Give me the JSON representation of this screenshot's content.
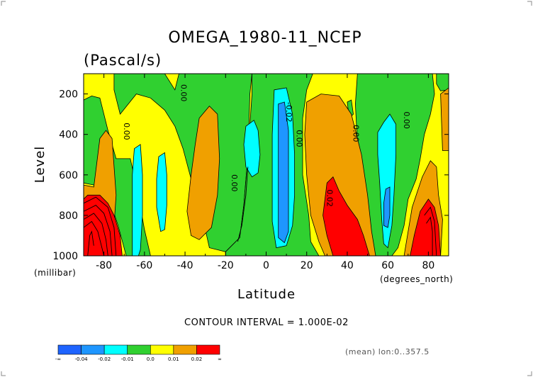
{
  "chart_data": {
    "type": "heatmap",
    "title": "OMEGA_1980-11_NCEP",
    "units": "(Pascal/s)",
    "xlabel": "Latitude",
    "x_units": "(degrees_north)",
    "ylabel": "Level",
    "y_units": "(millibar)",
    "xlim": [
      -90,
      90
    ],
    "ylim": [
      1000,
      100
    ],
    "x_ticks": [
      -80,
      -60,
      -40,
      -20,
      0,
      20,
      40,
      60,
      80
    ],
    "y_ticks": [
      200,
      400,
      600,
      800,
      1000
    ],
    "contour_interval_text": "CONTOUR INTERVAL = 1.000E-02",
    "footnote": "(mean) lon:0..357.5",
    "contour_labels": [
      {
        "text": "0.00",
        "lat": -70,
        "lev": 385
      },
      {
        "text": "0.00",
        "lat": -42,
        "lev": 195
      },
      {
        "text": "0.00",
        "lat": -17,
        "lev": 640
      },
      {
        "text": "-0.02",
        "lat": 10,
        "lev": 290
      },
      {
        "text": "0.00",
        "lat": 15,
        "lev": 420
      },
      {
        "text": "0.02",
        "lat": 30,
        "lev": 715
      },
      {
        "text": "0.00",
        "lat": 43,
        "lev": 395
      },
      {
        "text": "0.00",
        "lat": 68,
        "lev": 330
      }
    ],
    "colorbar": {
      "bins": [
        {
          "label": "-∞",
          "color": "#1e64ff"
        },
        {
          "label": "-0.04",
          "color": "#1e96ff"
        },
        {
          "label": "-0.02",
          "color": "#00ffff"
        },
        {
          "label": "-0.01",
          "color": "#30d030"
        },
        {
          "label": "0.0",
          "color": "#ffff00"
        },
        {
          "label": "0.01",
          "color": "#f0a000"
        },
        {
          "label": "0.02",
          "color": "#ff0000"
        }
      ],
      "end_label": "∞"
    },
    "regions": [
      {
        "value": "yellow",
        "color": "#ffff00",
        "points": [
          [
            -90,
            1000
          ],
          [
            -90,
            100
          ],
          [
            90,
            100
          ],
          [
            90,
            1000
          ]
        ]
      },
      {
        "value": "green",
        "color": "#30d030",
        "points": [
          [
            -75,
            100
          ],
          [
            -50,
            100
          ],
          [
            -45,
            180
          ],
          [
            -43,
            100
          ],
          [
            -7,
            100
          ],
          [
            -8,
            200
          ],
          [
            -9,
            500
          ],
          [
            -11,
            750
          ],
          [
            -13,
            910
          ],
          [
            -20,
            980
          ],
          [
            -28,
            960
          ],
          [
            -32,
            780
          ],
          [
            -37,
            620
          ],
          [
            -41,
            470
          ],
          [
            -45,
            360
          ],
          [
            -50,
            280
          ],
          [
            -57,
            220
          ],
          [
            -64,
            200
          ],
          [
            -72,
            300
          ],
          [
            -75,
            180
          ]
        ]
      },
      {
        "value": "green",
        "color": "#30d030",
        "points": [
          [
            -86,
            210
          ],
          [
            -82,
            220
          ],
          [
            -78,
            380
          ],
          [
            -74,
            520
          ],
          [
            -67,
            520
          ],
          [
            -63,
            700
          ],
          [
            -60,
            870
          ],
          [
            -57,
            1000
          ],
          [
            -69,
            1000
          ],
          [
            -73,
            850
          ],
          [
            -77,
            730
          ],
          [
            -85,
            650
          ],
          [
            -90,
            640
          ],
          [
            -90,
            230
          ]
        ]
      },
      {
        "value": "green",
        "color": "#30d030",
        "points": [
          [
            -20,
            980
          ],
          [
            -13,
            910
          ],
          [
            -11,
            750
          ],
          [
            -9,
            500
          ],
          [
            -7,
            200
          ],
          [
            -7,
            100
          ],
          [
            23,
            100
          ],
          [
            20,
            180
          ],
          [
            18,
            320
          ],
          [
            18,
            600
          ],
          [
            21,
            800
          ],
          [
            22,
            930
          ],
          [
            26,
            1000
          ],
          [
            -20,
            1000
          ]
        ]
      },
      {
        "value": "green",
        "color": "#30d030",
        "points": [
          [
            45,
            100
          ],
          [
            82,
            100
          ],
          [
            83,
            200
          ],
          [
            81,
            300
          ],
          [
            78,
            400
          ],
          [
            76,
            520
          ],
          [
            74,
            620
          ],
          [
            70,
            720
          ],
          [
            68,
            850
          ],
          [
            65,
            960
          ],
          [
            62,
            1000
          ],
          [
            54,
            1000
          ],
          [
            50,
            850
          ],
          [
            47,
            650
          ],
          [
            45,
            450
          ],
          [
            44,
            250
          ]
        ]
      },
      {
        "value": "green",
        "color": "#30d030",
        "points": [
          [
            84,
            100
          ],
          [
            90,
            100
          ],
          [
            90,
            180
          ],
          [
            86,
            185
          ],
          [
            84,
            150
          ]
        ]
      },
      {
        "value": "green",
        "color": "#30d030",
        "points": [
          [
            40,
            240
          ],
          [
            42,
            230
          ],
          [
            43,
            300
          ],
          [
            41,
            320
          ]
        ]
      },
      {
        "value": "orange",
        "color": "#f0a000",
        "points": [
          [
            -90,
            650
          ],
          [
            -85,
            660
          ],
          [
            -82,
            420
          ],
          [
            -79,
            380
          ],
          [
            -76,
            420
          ],
          [
            -74,
            700
          ],
          [
            -76,
            1000
          ],
          [
            -90,
            1000
          ]
        ]
      },
      {
        "value": "orange",
        "color": "#f0a000",
        "points": [
          [
            -33,
            320
          ],
          [
            -28,
            260
          ],
          [
            -24,
            300
          ],
          [
            -23,
            520
          ],
          [
            -24,
            700
          ],
          [
            -27,
            860
          ],
          [
            -33,
            920
          ],
          [
            -37,
            900
          ],
          [
            -39,
            780
          ],
          [
            -37,
            600
          ],
          [
            -35,
            450
          ]
        ]
      },
      {
        "value": "orange",
        "color": "#f0a000",
        "points": [
          [
            20,
            240
          ],
          [
            27,
            200
          ],
          [
            36,
            210
          ],
          [
            42,
            300
          ],
          [
            47,
            500
          ],
          [
            50,
            700
          ],
          [
            52,
            880
          ],
          [
            54,
            1000
          ],
          [
            29,
            1000
          ],
          [
            26,
            930
          ],
          [
            22,
            800
          ],
          [
            20,
            600
          ],
          [
            19,
            400
          ]
        ]
      },
      {
        "value": "orange",
        "color": "#f0a000",
        "points": [
          [
            72,
            760
          ],
          [
            77,
            610
          ],
          [
            81,
            530
          ],
          [
            84,
            560
          ],
          [
            85,
            700
          ],
          [
            87,
            820
          ],
          [
            86,
            1000
          ],
          [
            68,
            1000
          ],
          [
            70,
            880
          ]
        ]
      },
      {
        "value": "orange",
        "color": "#f0a000",
        "points": [
          [
            86,
            200
          ],
          [
            90,
            170
          ],
          [
            90,
            480
          ],
          [
            87,
            480
          ]
        ]
      },
      {
        "value": "cyan",
        "color": "#00ffff",
        "points": [
          [
            -65,
            470
          ],
          [
            -62,
            450
          ],
          [
            -61,
            600
          ],
          [
            -61,
            800
          ],
          [
            -62,
            970
          ],
          [
            -63,
            1000
          ],
          [
            -66,
            1000
          ],
          [
            -66,
            800
          ],
          [
            -66,
            600
          ]
        ]
      },
      {
        "value": "cyan",
        "color": "#00ffff",
        "points": [
          [
            -53,
            510
          ],
          [
            -50,
            490
          ],
          [
            -49,
            600
          ],
          [
            -49,
            750
          ],
          [
            -50,
            870
          ],
          [
            -52,
            880
          ],
          [
            -54,
            760
          ],
          [
            -54,
            620
          ]
        ]
      },
      {
        "value": "cyan",
        "color": "#00ffff",
        "points": [
          [
            -10,
            360
          ],
          [
            -6,
            330
          ],
          [
            -4,
            380
          ],
          [
            -3,
            500
          ],
          [
            -4,
            590
          ],
          [
            -7,
            610
          ],
          [
            -10,
            560
          ],
          [
            -11,
            450
          ]
        ]
      },
      {
        "value": "cyan",
        "color": "#00ffff",
        "points": [
          [
            4,
            180
          ],
          [
            10,
            170
          ],
          [
            13,
            300
          ],
          [
            14,
            500
          ],
          [
            14,
            700
          ],
          [
            13,
            850
          ],
          [
            10,
            950
          ],
          [
            5,
            960
          ],
          [
            3,
            830
          ],
          [
            3,
            600
          ],
          [
            3,
            400
          ]
        ]
      },
      {
        "value": "cyan",
        "color": "#00ffff",
        "points": [
          [
            55,
            390
          ],
          [
            58,
            340
          ],
          [
            61,
            300
          ],
          [
            64,
            350
          ],
          [
            64,
            500
          ],
          [
            63,
            700
          ],
          [
            62,
            850
          ],
          [
            60,
            960
          ],
          [
            58,
            940
          ],
          [
            57,
            820
          ],
          [
            56,
            640
          ],
          [
            55,
            500
          ]
        ]
      },
      {
        "value": "blue",
        "color": "#1e96ff",
        "points": [
          [
            6,
            250
          ],
          [
            9,
            240
          ],
          [
            11,
            380
          ],
          [
            11,
            560
          ],
          [
            11,
            720
          ],
          [
            11,
            880
          ],
          [
            9,
            935
          ],
          [
            6,
            910
          ],
          [
            6,
            700
          ],
          [
            6,
            480
          ]
        ]
      },
      {
        "value": "blue",
        "color": "#1e96ff",
        "points": [
          [
            59,
            670
          ],
          [
            61,
            660
          ],
          [
            61,
            800
          ],
          [
            60,
            860
          ],
          [
            58,
            850
          ],
          [
            58,
            740
          ]
        ]
      },
      {
        "value": "red",
        "color": "#ff0000",
        "points": [
          [
            -90,
            720
          ],
          [
            -88,
            700
          ],
          [
            -82,
            700
          ],
          [
            -78,
            740
          ],
          [
            -75,
            800
          ],
          [
            -72,
            900
          ],
          [
            -71,
            1000
          ],
          [
            -90,
            1000
          ]
        ]
      },
      {
        "value": "red",
        "color": "#ff0000",
        "points": [
          [
            30,
            640
          ],
          [
            33,
            610
          ],
          [
            36,
            680
          ],
          [
            40,
            750
          ],
          [
            45,
            820
          ],
          [
            48,
            900
          ],
          [
            51,
            1000
          ],
          [
            33,
            1000
          ],
          [
            30,
            900
          ],
          [
            28,
            800
          ]
        ]
      },
      {
        "value": "red",
        "color": "#ff0000",
        "points": [
          [
            76,
            780
          ],
          [
            80,
            720
          ],
          [
            83,
            760
          ],
          [
            85,
            850
          ],
          [
            86,
            1000
          ],
          [
            71,
            1000
          ],
          [
            73,
            900
          ]
        ]
      }
    ],
    "contour_lines": [
      [
        [
          -90,
          740
        ],
        [
          -84,
          710
        ],
        [
          -78,
          760
        ],
        [
          -75,
          860
        ],
        [
          -74,
          1000
        ]
      ],
      [
        [
          -90,
          780
        ],
        [
          -84,
          750
        ],
        [
          -80,
          790
        ],
        [
          -77,
          880
        ],
        [
          -76,
          1000
        ]
      ],
      [
        [
          -90,
          820
        ],
        [
          -85,
          790
        ],
        [
          -81,
          840
        ],
        [
          -79,
          920
        ],
        [
          -78,
          1000
        ]
      ],
      [
        [
          -90,
          860
        ],
        [
          -86,
          830
        ],
        [
          -83,
          880
        ],
        [
          -81,
          960
        ],
        [
          -80,
          1000
        ]
      ],
      [
        [
          -88,
          1000
        ],
        [
          -87,
          900
        ],
        [
          -86,
          880
        ],
        [
          -85,
          950
        ]
      ],
      [
        [
          78,
          800
        ],
        [
          81,
          760
        ],
        [
          83,
          830
        ],
        [
          84,
          1000
        ]
      ],
      [
        [
          79,
          840
        ],
        [
          81,
          810
        ],
        [
          82,
          880
        ],
        [
          82,
          1000
        ]
      ],
      [
        [
          -9,
          560
        ],
        [
          -10,
          700
        ],
        [
          -12,
          850
        ],
        [
          -14,
          930
        ]
      ]
    ]
  }
}
